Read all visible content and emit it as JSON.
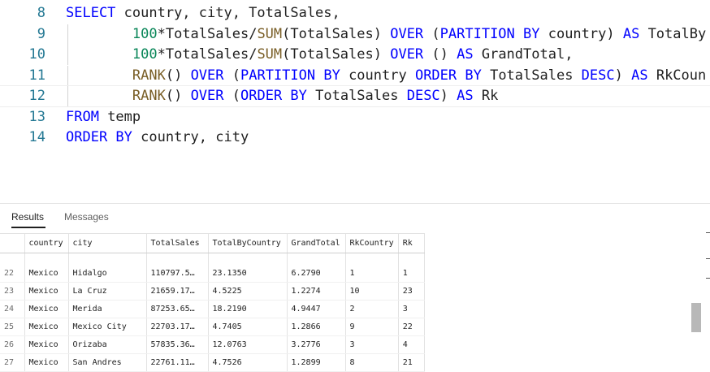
{
  "editor": {
    "lines": [
      {
        "num": "8",
        "tokens": [
          {
            "t": "SELECT",
            "c": "kw"
          },
          {
            "t": " country, city, TotalSales,",
            "c": ""
          }
        ]
      },
      {
        "num": "9",
        "tokens": [
          {
            "t": "        ",
            "c": ""
          },
          {
            "t": "100",
            "c": "num"
          },
          {
            "t": "*TotalSales/",
            "c": ""
          },
          {
            "t": "SUM",
            "c": "fn"
          },
          {
            "t": "(TotalSales) ",
            "c": ""
          },
          {
            "t": "OVER",
            "c": "kw"
          },
          {
            "t": " (",
            "c": ""
          },
          {
            "t": "PARTITION BY",
            "c": "kw"
          },
          {
            "t": " country) ",
            "c": ""
          },
          {
            "t": "AS",
            "c": "kw"
          },
          {
            "t": " TotalBy",
            "c": ""
          }
        ]
      },
      {
        "num": "10",
        "tokens": [
          {
            "t": "        ",
            "c": ""
          },
          {
            "t": "100",
            "c": "num"
          },
          {
            "t": "*TotalSales/",
            "c": ""
          },
          {
            "t": "SUM",
            "c": "fn"
          },
          {
            "t": "(TotalSales) ",
            "c": ""
          },
          {
            "t": "OVER",
            "c": "kw"
          },
          {
            "t": " () ",
            "c": ""
          },
          {
            "t": "AS",
            "c": "kw"
          },
          {
            "t": " GrandTotal,",
            "c": ""
          }
        ]
      },
      {
        "num": "11",
        "tokens": [
          {
            "t": "        ",
            "c": ""
          },
          {
            "t": "RANK",
            "c": "fn"
          },
          {
            "t": "() ",
            "c": ""
          },
          {
            "t": "OVER",
            "c": "kw"
          },
          {
            "t": " (",
            "c": ""
          },
          {
            "t": "PARTITION BY",
            "c": "kw"
          },
          {
            "t": " country ",
            "c": ""
          },
          {
            "t": "ORDER BY",
            "c": "kw"
          },
          {
            "t": " TotalSales ",
            "c": ""
          },
          {
            "t": "DESC",
            "c": "kw"
          },
          {
            "t": ") ",
            "c": ""
          },
          {
            "t": "AS",
            "c": "kw"
          },
          {
            "t": " RkCoun",
            "c": ""
          }
        ]
      },
      {
        "num": "12",
        "tokens": [
          {
            "t": "        ",
            "c": ""
          },
          {
            "t": "RANK",
            "c": "fn"
          },
          {
            "t": "() ",
            "c": ""
          },
          {
            "t": "OVER",
            "c": "kw"
          },
          {
            "t": " (",
            "c": ""
          },
          {
            "t": "ORDER BY",
            "c": "kw"
          },
          {
            "t": " TotalSales ",
            "c": ""
          },
          {
            "t": "DESC",
            "c": "kw"
          },
          {
            "t": ") ",
            "c": ""
          },
          {
            "t": "AS",
            "c": "kw"
          },
          {
            "t": " Rk",
            "c": ""
          }
        ]
      },
      {
        "num": "13",
        "tokens": [
          {
            "t": "FROM",
            "c": "kw"
          },
          {
            "t": " temp",
            "c": ""
          }
        ]
      },
      {
        "num": "14",
        "tokens": [
          {
            "t": "ORDER BY",
            "c": "kw"
          },
          {
            "t": " country, city",
            "c": ""
          }
        ]
      }
    ],
    "current_line": "12"
  },
  "results": {
    "tabs": [
      {
        "label": "Results",
        "active": true
      },
      {
        "label": "Messages",
        "active": false
      }
    ],
    "columns": [
      "",
      "country",
      "city",
      "TotalSales",
      "TotalByCountry",
      "GrandTotal",
      "RkCountry",
      "Rk"
    ],
    "rows": [
      [
        "22",
        "Mexico",
        "Hidalgo",
        "110797.5…",
        "23.1350",
        "6.2790",
        "1",
        "1"
      ],
      [
        "23",
        "Mexico",
        "La Cruz",
        "21659.17…",
        "4.5225",
        "1.2274",
        "10",
        "23"
      ],
      [
        "24",
        "Mexico",
        "Merida",
        "87253.65…",
        "18.2190",
        "4.9447",
        "2",
        "3"
      ],
      [
        "25",
        "Mexico",
        "Mexico City",
        "22703.17…",
        "4.7405",
        "1.2866",
        "9",
        "22"
      ],
      [
        "26",
        "Mexico",
        "Orizaba",
        "57835.36…",
        "12.0763",
        "3.2776",
        "3",
        "4"
      ],
      [
        "27",
        "Mexico",
        "San Andres",
        "22761.11…",
        "4.7526",
        "1.2899",
        "8",
        "21"
      ]
    ]
  }
}
